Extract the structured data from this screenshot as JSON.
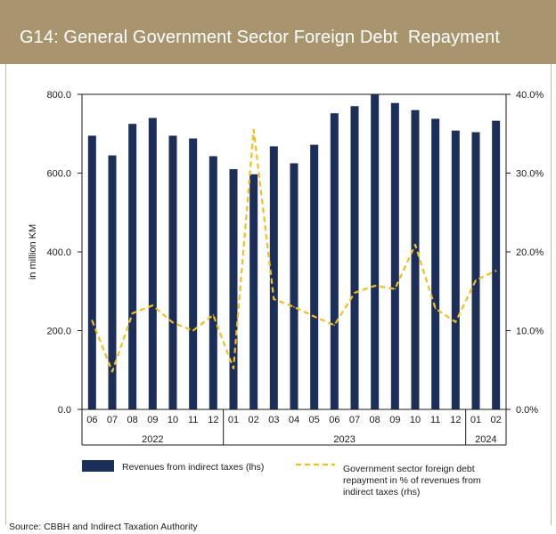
{
  "header": {
    "title": "G14: General Government Sector Foreign Debt  Repayment"
  },
  "source": "Source: CBBH and Indirect Taxation Authority",
  "colors": {
    "header_bg": "#a8956d",
    "bar": "#1c2e5a",
    "line": "#f2bf1b"
  },
  "chart_data": {
    "type": "bar",
    "ylabel": "in million KM",
    "ylim": [
      0,
      800
    ],
    "y2lim": [
      0,
      40
    ],
    "yticks": [
      "0.0",
      "200.0",
      "400.0",
      "600.0",
      "800.0"
    ],
    "y2ticks": [
      "0.0%",
      "10.0%",
      "20.0%",
      "30.0%",
      "40.0%"
    ],
    "categories": [
      "06",
      "07",
      "08",
      "09",
      "10",
      "11",
      "12",
      "01",
      "02",
      "03",
      "04",
      "05",
      "06",
      "07",
      "08",
      "09",
      "10",
      "11",
      "12",
      "01",
      "02"
    ],
    "years": [
      {
        "label": "2022",
        "from": 0,
        "to": 6
      },
      {
        "label": "2023",
        "from": 7,
        "to": 18
      },
      {
        "label": "2024",
        "from": 19,
        "to": 20
      }
    ],
    "series": [
      {
        "name": "Revenues from indirect taxes (lhs)",
        "type": "bar",
        "axis": "left",
        "values": [
          695,
          645,
          725,
          740,
          695,
          688,
          643,
          610,
          597,
          668,
          625,
          672,
          752,
          770,
          800,
          778,
          760,
          738,
          708,
          704,
          733
        ]
      },
      {
        "name": "Government sector foreign debt repayment in % of revenues from indirect taxes (rhs)",
        "type": "line",
        "axis": "right",
        "values": [
          11.3,
          4.8,
          12.2,
          13.2,
          11.0,
          10.0,
          12.0,
          5.2,
          35.5,
          14.0,
          13.0,
          11.8,
          10.7,
          14.8,
          15.7,
          15.3,
          20.9,
          12.8,
          11.1,
          16.4,
          17.6
        ]
      }
    ],
    "legend": {
      "bar_label": "Revenues from indirect taxes (lhs)",
      "line_label_lines": [
        "Government sector foreign debt",
        "repayment in % of revenues from",
        "indirect taxes (rhs)"
      ]
    }
  }
}
